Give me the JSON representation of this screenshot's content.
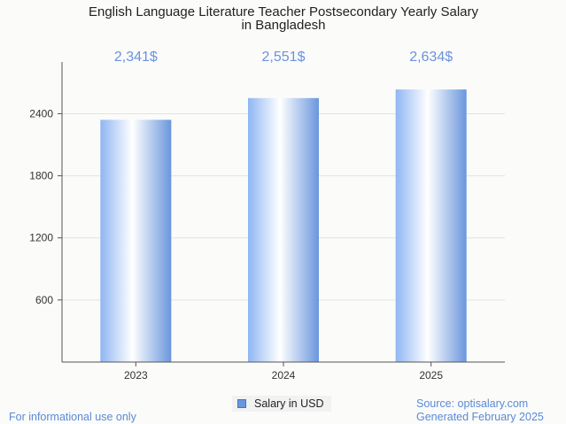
{
  "chart_data": {
    "type": "bar",
    "title_lines": [
      "English Language Literature Teacher Postsecondary Yearly Salary",
      "in Bangladesh"
    ],
    "categories": [
      "2023",
      "2024",
      "2025"
    ],
    "series": [
      {
        "name": "Salary in USD",
        "values": [
          2341,
          2551,
          2634
        ],
        "value_labels": [
          "2,341$",
          "2,551$",
          "2,634$"
        ]
      }
    ],
    "y_ticks": [
      600,
      1200,
      1800,
      2400
    ],
    "ylim": [
      0,
      2900
    ],
    "grid": true,
    "legend_position": "bottom-center",
    "bar_color": "#6a96dd",
    "value_label_color": "#6a93dd"
  },
  "footer": {
    "left": "For informational use only",
    "source": "Source: optisalary.com",
    "generated": "Generated February 2025"
  }
}
